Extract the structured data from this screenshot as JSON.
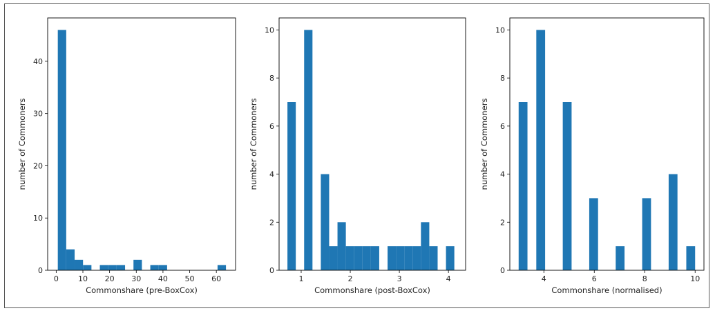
{
  "chart_data": [
    {
      "type": "bar",
      "xlabel": "Commonshare (pre-BoxCox)",
      "ylabel": "number of Commoners",
      "xlim": [
        -3.2,
        67.2
      ],
      "ylim": [
        0,
        48.3
      ],
      "xticks": [
        0,
        10,
        20,
        30,
        40,
        50,
        60
      ],
      "yticks": [
        0,
        10,
        20,
        30,
        40
      ],
      "bar_color": "#1f77b4",
      "bars": [
        {
          "x0": 0.6,
          "x1": 3.75,
          "value": 46
        },
        {
          "x0": 3.75,
          "x1": 6.9,
          "value": 4
        },
        {
          "x0": 6.9,
          "x1": 10.05,
          "value": 2
        },
        {
          "x0": 10.05,
          "x1": 13.2,
          "value": 1
        },
        {
          "x0": 16.35,
          "x1": 19.5,
          "value": 1
        },
        {
          "x0": 19.5,
          "x1": 22.65,
          "value": 1
        },
        {
          "x0": 22.65,
          "x1": 25.8,
          "value": 1
        },
        {
          "x0": 28.95,
          "x1": 32.1,
          "value": 2
        },
        {
          "x0": 35.25,
          "x1": 38.4,
          "value": 1
        },
        {
          "x0": 38.4,
          "x1": 41.55,
          "value": 1
        },
        {
          "x0": 60.45,
          "x1": 63.6,
          "value": 1
        }
      ]
    },
    {
      "type": "bar",
      "xlabel": "Commonshare (post-BoxCox)",
      "ylabel": "number of Commoners",
      "xlim": [
        0.55,
        4.35
      ],
      "ylim": [
        0,
        10.5
      ],
      "xticks": [
        1,
        2,
        3,
        4
      ],
      "yticks": [
        0,
        2,
        4,
        6,
        8,
        10
      ],
      "bar_color": "#1f77b4",
      "bars": [
        {
          "x0": 0.72,
          "x1": 0.89,
          "value": 7
        },
        {
          "x0": 1.06,
          "x1": 1.23,
          "value": 10
        },
        {
          "x0": 1.4,
          "x1": 1.57,
          "value": 4
        },
        {
          "x0": 1.57,
          "x1": 1.74,
          "value": 1
        },
        {
          "x0": 1.74,
          "x1": 1.91,
          "value": 2
        },
        {
          "x0": 1.91,
          "x1": 2.08,
          "value": 1
        },
        {
          "x0": 2.08,
          "x1": 2.25,
          "value": 1
        },
        {
          "x0": 2.25,
          "x1": 2.42,
          "value": 1
        },
        {
          "x0": 2.42,
          "x1": 2.59,
          "value": 1
        },
        {
          "x0": 2.76,
          "x1": 2.93,
          "value": 1
        },
        {
          "x0": 2.93,
          "x1": 3.1,
          "value": 1
        },
        {
          "x0": 3.1,
          "x1": 3.27,
          "value": 1
        },
        {
          "x0": 3.27,
          "x1": 3.44,
          "value": 1
        },
        {
          "x0": 3.44,
          "x1": 3.61,
          "value": 2
        },
        {
          "x0": 3.61,
          "x1": 3.78,
          "value": 1
        },
        {
          "x0": 3.95,
          "x1": 4.12,
          "value": 1
        }
      ]
    },
    {
      "type": "bar",
      "xlabel": "Commonshare (normalised)",
      "ylabel": "number of Commoners",
      "xlim": [
        2.65,
        10.35
      ],
      "ylim": [
        0,
        10.5
      ],
      "xticks": [
        4,
        6,
        8,
        10
      ],
      "yticks": [
        0,
        2,
        4,
        6,
        8,
        10
      ],
      "bar_color": "#1f77b4",
      "bars": [
        {
          "x0": 3.0,
          "x1": 3.35,
          "value": 7
        },
        {
          "x0": 3.7,
          "x1": 4.05,
          "value": 10
        },
        {
          "x0": 4.75,
          "x1": 5.1,
          "value": 7
        },
        {
          "x0": 5.8,
          "x1": 6.15,
          "value": 3
        },
        {
          "x0": 6.85,
          "x1": 7.2,
          "value": 1
        },
        {
          "x0": 7.9,
          "x1": 8.25,
          "value": 3
        },
        {
          "x0": 8.95,
          "x1": 9.3,
          "value": 4
        },
        {
          "x0": 9.65,
          "x1": 10.0,
          "value": 1
        }
      ]
    }
  ]
}
